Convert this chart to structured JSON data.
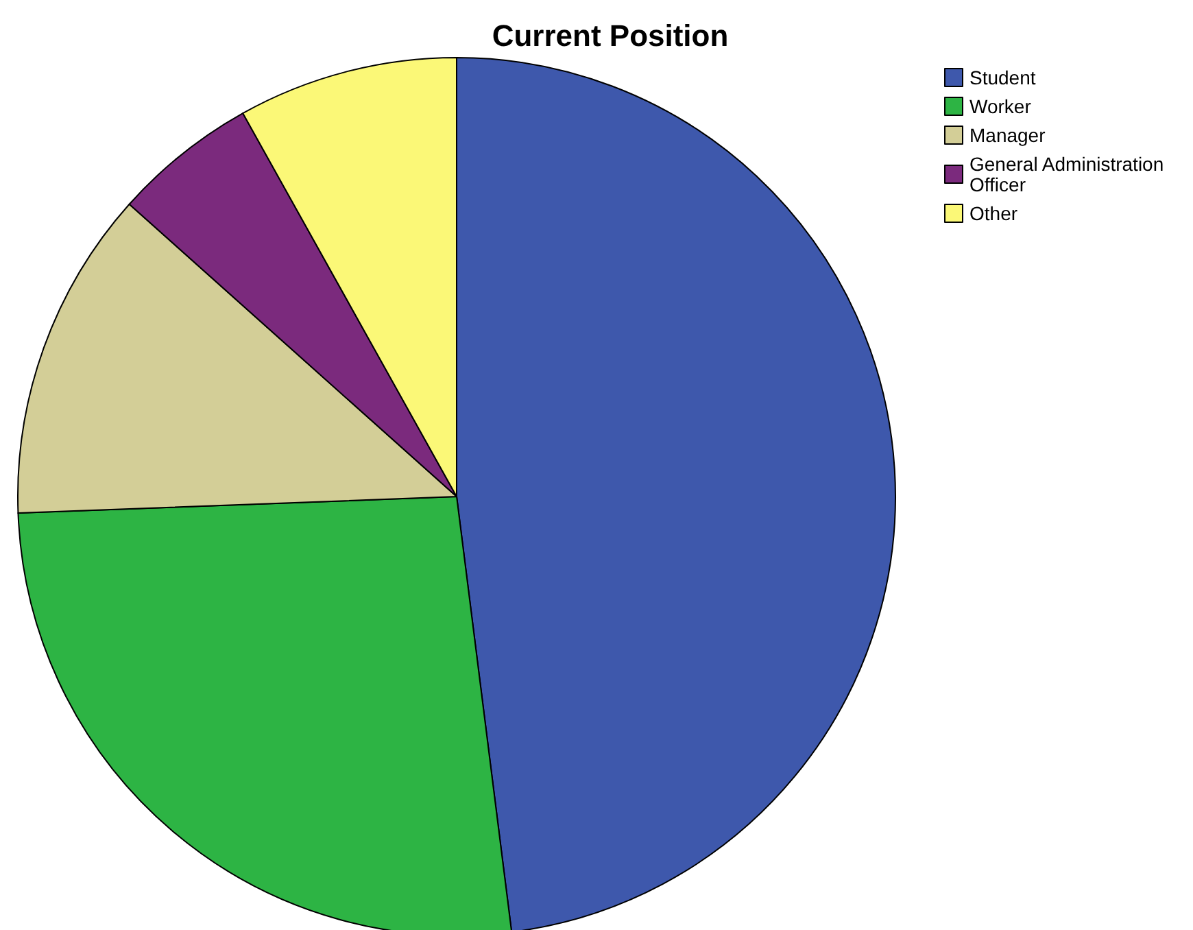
{
  "chart_data": {
    "type": "pie",
    "title": "Current Position",
    "categories": [
      "Student",
      "Worker",
      "Manager",
      "General Administration Officer",
      "Other"
    ],
    "values": [
      48,
      26.4,
      12.2,
      5.3,
      8.1
    ],
    "colors": [
      "#3e58ac",
      "#2db444",
      "#d3ce97",
      "#7b2a7d",
      "#fbf877"
    ],
    "legend": "top right"
  }
}
